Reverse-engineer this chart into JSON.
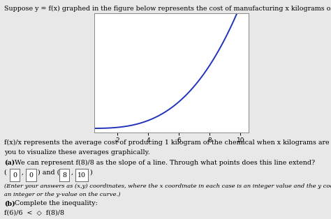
{
  "title_text": "Suppose y = f(x) graphed in the figure below represents the cost of manufacturing x kilograms of a chemical.",
  "curve_color": "#2233bb",
  "curve_linewidth": 1.4,
  "x_ticks": [
    2,
    4,
    6,
    8,
    10
  ],
  "xlim": [
    0.5,
    10.5
  ],
  "ylim": [
    -1,
    28
  ],
  "background_color": "#e8e8e8",
  "plot_bg": "#ffffff",
  "body_text_1": "f(x)/x represents the average cost of producing 1 kilogram of the chemical when x kilograms are made. This problem asks\nyou to visualize these averages graphically.",
  "body_text_2a": "(a)",
  "body_text_2b": " We can represent f(8)/8 as the slope of a line. Through what points does this line extend?",
  "box_vals": [
    "0",
    "0",
    "8",
    "10"
  ],
  "body_text_4": "(Enter your answers as (x,y) coordinates, where the x coordinate in each case is an integer value and the y coordinate is either\nan integer or the y-value on the curve.)",
  "body_text_5a": "(b)",
  "body_text_5b": " Complete the inequality:",
  "body_text_6": "f(6)/6",
  "body_text_7": "f(8)/8",
  "inequality_symbol": "<",
  "diamond_symbol": "◇"
}
